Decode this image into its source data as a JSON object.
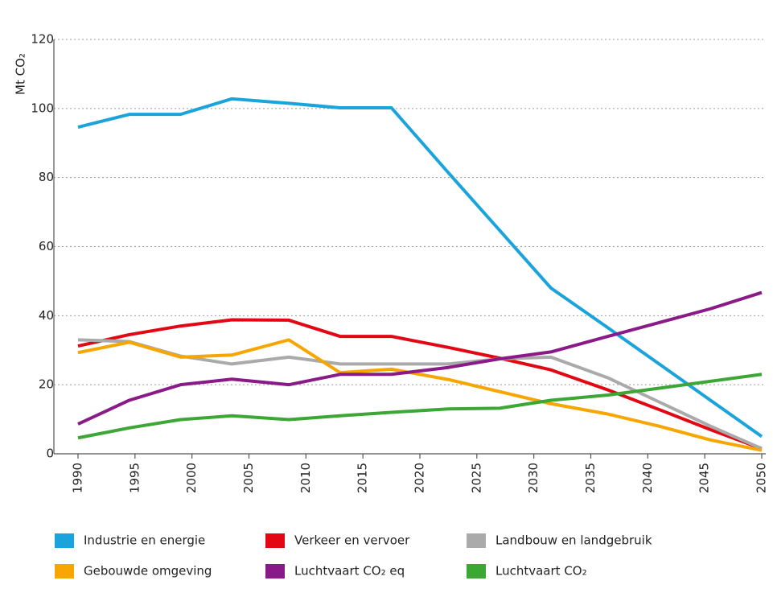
{
  "chart_data": {
    "type": "line",
    "y_label": "Mt CO₂",
    "x": [
      1990,
      1994.5,
      1999,
      2003.5,
      2008.5,
      2013,
      2017.5,
      2022.5,
      2027,
      2031.5,
      2036.5,
      2041,
      2045.5,
      2050
    ],
    "xlim": [
      1990,
      2050
    ],
    "xticks": [
      1990,
      1995,
      2000,
      2005,
      2010,
      2015,
      2020,
      2025,
      2030,
      2035,
      2040,
      2045,
      2050
    ],
    "ylim": [
      0,
      120
    ],
    "yticks": [
      0,
      20,
      40,
      60,
      80,
      100,
      120
    ],
    "grid": true,
    "series": [
      {
        "name": "Industrie en energie",
        "color": "#1ba3dc",
        "values": [
          94.6,
          98.3,
          98.3,
          102.8,
          101.5,
          100.2,
          100.2,
          81.4,
          64.7,
          48,
          36.5,
          26,
          15.5,
          5
        ]
      },
      {
        "name": "Verkeer en vervoer",
        "color": "#e30613",
        "values": [
          31.2,
          34.5,
          37,
          38.8,
          38.7,
          34,
          34,
          30.8,
          27.7,
          24.3,
          18.5,
          12.8,
          7,
          1.5
        ]
      },
      {
        "name": "Landbouw en landgebruik",
        "color": "#aaaaaa",
        "values": [
          33,
          32.5,
          28.3,
          26,
          28,
          26,
          26,
          26,
          27.5,
          28,
          22,
          15,
          8,
          1.5
        ]
      },
      {
        "name": "Gebouwde omgeving",
        "color": "#f7a600",
        "values": [
          29.3,
          32.3,
          28,
          28.6,
          33,
          23.5,
          24.5,
          21.5,
          18,
          14.5,
          11.5,
          8,
          4,
          1
        ]
      },
      {
        "name": "Luchtvaart CO₂ eq",
        "color": "#8b1a89",
        "values": [
          8.6,
          15.5,
          20,
          21.6,
          20,
          23,
          23,
          25,
          27.5,
          29.5,
          34,
          38,
          42,
          46.7
        ]
      },
      {
        "name": "Luchtvaart CO₂",
        "color": "#3da736",
        "values": [
          4.6,
          7.5,
          9.9,
          11,
          9.9,
          11,
          12,
          13,
          13.2,
          15.5,
          17,
          19,
          21,
          23
        ]
      }
    ]
  }
}
